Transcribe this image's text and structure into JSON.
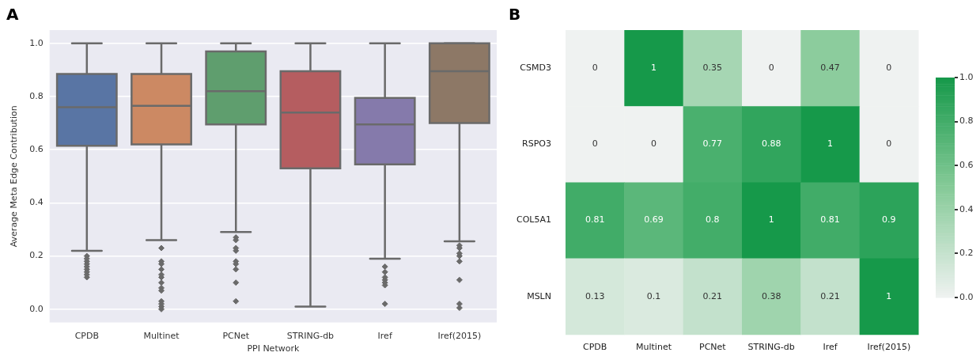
{
  "chart_data": [
    {
      "type": "box",
      "title": "A",
      "xlabel": "PPI Network",
      "ylabel": "Average Meta Edge Contribution",
      "categories": [
        "CPDB",
        "Multinet",
        "PCNet",
        "STRING-db",
        "Iref",
        "Iref(2015)"
      ],
      "colors": [
        "#5975a4",
        "#cc8963",
        "#5f9e6e",
        "#b55d60",
        "#857aab",
        "#8d7866"
      ],
      "boxes": [
        {
          "low": 0.22,
          "q1": 0.615,
          "median": 0.76,
          "q3": 0.885,
          "high": 1.0,
          "outliers": [
            0.2,
            0.19,
            0.18,
            0.17,
            0.16,
            0.15,
            0.14,
            0.13,
            0.12
          ]
        },
        {
          "low": 0.26,
          "q1": 0.62,
          "median": 0.765,
          "q3": 0.885,
          "high": 1.0,
          "outliers": [
            0.23,
            0.18,
            0.17,
            0.15,
            0.13,
            0.12,
            0.1,
            0.08,
            0.07,
            0.03,
            0.02,
            0.01,
            0.0
          ]
        },
        {
          "low": 0.29,
          "q1": 0.695,
          "median": 0.82,
          "q3": 0.97,
          "high": 1.0,
          "outliers": [
            0.27,
            0.26,
            0.23,
            0.22,
            0.18,
            0.17,
            0.15,
            0.1,
            0.03
          ]
        },
        {
          "low": 0.01,
          "q1": 0.53,
          "median": 0.74,
          "q3": 0.895,
          "high": 1.0
        },
        {
          "low": 0.19,
          "q1": 0.545,
          "median": 0.695,
          "q3": 0.795,
          "high": 1.0,
          "outliers": [
            0.16,
            0.14,
            0.12,
            0.11,
            0.1,
            0.09,
            0.02
          ]
        },
        {
          "low": 0.255,
          "q1": 0.7,
          "median": 0.895,
          "q3": 1.0,
          "high": 1.0,
          "outliers": [
            0.24,
            0.23,
            0.21,
            0.2,
            0.18,
            0.11,
            0.02,
            0.005
          ]
        }
      ],
      "ylim": [
        -0.05,
        1.05
      ],
      "yticks": [
        {
          "value": 0,
          "label": "0.0"
        },
        0.2,
        0.4,
        0.6,
        0.8,
        {
          "value": 1,
          "label": "1.0"
        }
      ],
      "grid": "y",
      "legend": false
    },
    {
      "type": "heatmap",
      "title": "B",
      "categories": [
        "CPDB",
        "Multinet",
        "PCNet",
        "STRING-db",
        "Iref",
        "Iref(2015)"
      ],
      "y_categories": [
        "CSMD3",
        "RSPO3",
        "COL5A1",
        "MSLN"
      ],
      "cells": [
        [
          0,
          1,
          0.35,
          0,
          0.47,
          0
        ],
        [
          0,
          0,
          0.77,
          0.88,
          1,
          0
        ],
        [
          0.81,
          0.69,
          0.8,
          1,
          0.81,
          0.9
        ],
        [
          0.13,
          0.1,
          0.21,
          0.38,
          0.21,
          1
        ]
      ],
      "data_labels": true,
      "clim": [
        0,
        1
      ],
      "cticks": [
        {
          "value": 0,
          "label": "0.0"
        },
        0.2,
        0.4,
        0.6,
        0.8,
        {
          "value": 1,
          "label": "1.0"
        }
      ]
    }
  ]
}
